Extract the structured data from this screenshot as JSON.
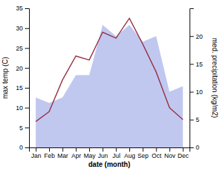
{
  "chart_data": {
    "type": "line",
    "categories": [
      "Jan",
      "Feb",
      "Mar",
      "Apr",
      "May",
      "Jun",
      "Jul",
      "Aug",
      "Sep",
      "Oct",
      "Nov",
      "Dec"
    ],
    "xlabel": "date (month)",
    "ylabel": "max temp (C)",
    "y2label": "med. precipitation (kg/m2)",
    "ylim": [
      0,
      35
    ],
    "yticks": [
      0,
      5,
      10,
      15,
      20,
      25,
      30,
      35
    ],
    "y2lim": [
      0,
      25
    ],
    "y2ticks": [
      0,
      5,
      10,
      15,
      20
    ],
    "series": [
      {
        "type": "area",
        "axis": "y2",
        "color": "#c0c8f0",
        "values": [
          9.0,
          8.0,
          9.0,
          13.0,
          13.0,
          22.0,
          20.0,
          22.0,
          19.0,
          20.0,
          10.0,
          11.0
        ]
      },
      {
        "type": "line",
        "color": "#993344",
        "values": [
          6.5,
          9.0,
          17.0,
          23.0,
          22.0,
          29.0,
          27.5,
          32.5,
          26.0,
          19.0,
          10.0,
          7.0
        ]
      }
    ]
  }
}
